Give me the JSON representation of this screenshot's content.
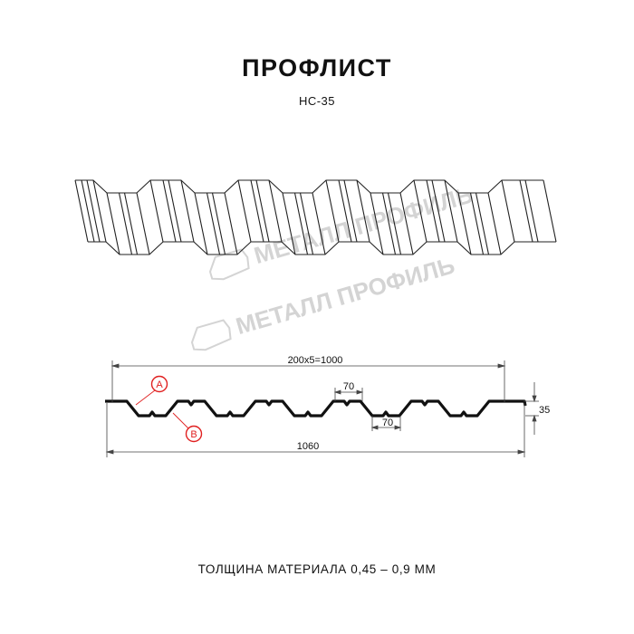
{
  "title": "ПРОФЛИСТ",
  "model": "НС-35",
  "watermark": "МЕТАЛЛ ПРОФИЛЬ",
  "dimensions": {
    "pitch_total": "200x5=1000",
    "overall_width": "1060",
    "height": "35",
    "crest_width": "70",
    "trough_width": "70"
  },
  "callouts": {
    "a": "A",
    "b": "B"
  },
  "thickness_text": "ТОЛЩИНА МАТЕРИАЛА 0,45 – 0,9 ММ",
  "colors": {
    "line": "#111111",
    "callout": "#e02020",
    "watermark": "#d4d4d4"
  }
}
